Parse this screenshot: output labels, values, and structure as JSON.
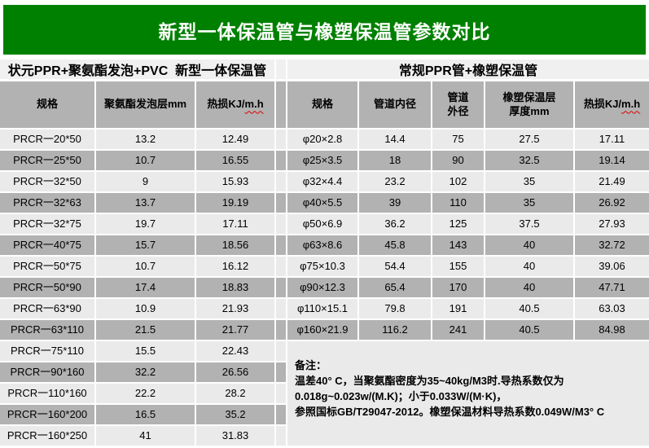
{
  "banner": {
    "title": "新型一体保温管与橡塑保温管参数对比"
  },
  "chart_data": [
    {
      "type": "table",
      "title": "状元PPR+聚氨酯发泡+PVC  新型一体保温管",
      "columns": [
        {
          "label": "规格"
        },
        {
          "label": "聚氨酯发泡层mm"
        },
        {
          "label": "热损KJ/m.h",
          "squiggle": "m.h"
        }
      ],
      "rows": [
        [
          "PRCR一20*50",
          "13.2",
          "12.49"
        ],
        [
          "PRCR一25*50",
          "10.7",
          "16.55"
        ],
        [
          "PRCR一32*50",
          "9",
          "15.93"
        ],
        [
          "PRCR一32*63",
          "13.7",
          "19.19"
        ],
        [
          "PRCR一32*75",
          "19.7",
          "17.11"
        ],
        [
          "PRCR一40*75",
          "15.7",
          "18.56"
        ],
        [
          "PRCR一50*75",
          "10.7",
          "16.12"
        ],
        [
          "PRCR一50*90",
          "17.4",
          "18.83"
        ],
        [
          "PRCR一63*90",
          "10.9",
          "21.93"
        ],
        [
          "PRCR一63*110",
          "21.5",
          "21.77"
        ],
        [
          "PRCR一75*110",
          "15.5",
          "22.43"
        ],
        [
          "PRCR一90*160",
          "32.2",
          "26.56"
        ],
        [
          "PRCR一110*160",
          "22.2",
          "28.2"
        ],
        [
          "PRCR一160*200",
          "16.5",
          "35.2"
        ],
        [
          "PRCR一160*250",
          "41",
          "31.83"
        ]
      ]
    },
    {
      "type": "table",
      "title": "常规PPR管+橡塑保温管",
      "columns": [
        {
          "label": "规格"
        },
        {
          "label": "管道内径"
        },
        {
          "label": "管道\n外径"
        },
        {
          "label": "橡塑保温层\n厚度mm"
        },
        {
          "label": "热损KJ/m.h",
          "squiggle": "m.h"
        }
      ],
      "rows": [
        [
          "φ20×2.8",
          "14.4",
          "75",
          "27.5",
          "17.11"
        ],
        [
          "φ25×3.5",
          "18",
          "90",
          "32.5",
          "19.14"
        ],
        [
          "φ32×4.4",
          "23.2",
          "102",
          "35",
          "21.49"
        ],
        [
          "φ40×5.5",
          "39",
          "110",
          "35",
          "26.92"
        ],
        [
          "φ50×6.9",
          "36.2",
          "125",
          "37.5",
          "27.93"
        ],
        [
          "φ63×8.6",
          "45.8",
          "143",
          "40",
          "32.72"
        ],
        [
          "φ75×10.3",
          "54.4",
          "155",
          "40",
          "39.06"
        ],
        [
          "φ90×12.3",
          "65.4",
          "170",
          "40",
          "47.71"
        ],
        [
          "φ110×15.1",
          "79.8",
          "191",
          "40.5",
          "63.03"
        ],
        [
          "φ160×21.9",
          "116.2",
          "241",
          "40.5",
          "84.98"
        ]
      ]
    }
  ],
  "remarks": {
    "label": "备注：",
    "lines": [
      "温差40° C，当聚氨酯密度为35~40kg/M3时.导热系数仅为",
      "0.018g~0.023w/(M.K)；小于0.033W/(M·K)，",
      "参照国标GB/T29047-2012。橡塑保温材料导热系数0.049W/M3° C"
    ]
  },
  "colors": {
    "banner_green": "#008000",
    "header_gray": "#b2b2b2",
    "row_dark": "#b2b2b2",
    "row_light": "#eaeaea",
    "section_bg": "#f0f0f0",
    "squiggle_red": "#e00000"
  }
}
